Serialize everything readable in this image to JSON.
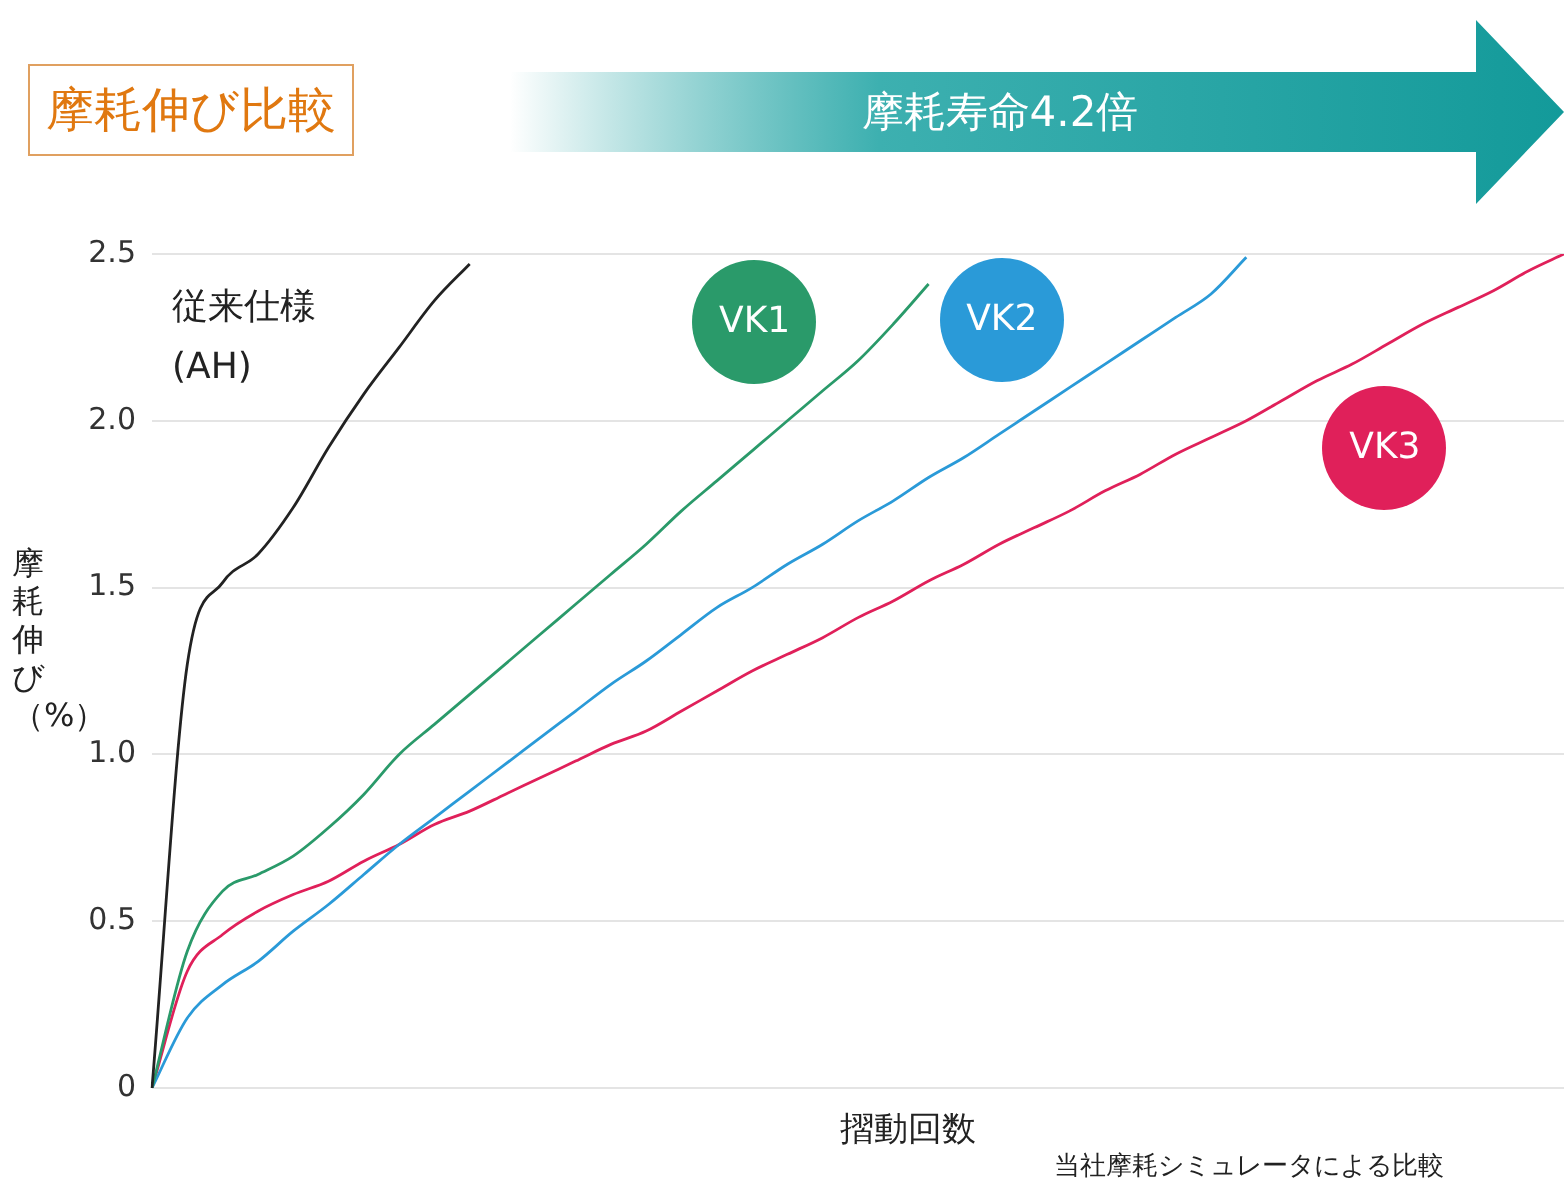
{
  "chart_data": {
    "type": "line",
    "title": "摩耗伸び比較",
    "subtitle": "摩耗寿命4.2倍",
    "xlabel": "摺動回数",
    "ylabel": "摩耗伸び（%）",
    "annotations": [
      "当社摩耗シミュレータによる比較"
    ],
    "categories": [
      null,
      null,
      null,
      null,
      null,
      null,
      null,
      null,
      null,
      null,
      null,
      null,
      null,
      null,
      null,
      null,
      null,
      null,
      null,
      null,
      null,
      null,
      null,
      null,
      null,
      null,
      null,
      null,
      null,
      null,
      null,
      null,
      null,
      null,
      null,
      null,
      null,
      null,
      null,
      null,
      null
    ],
    "ylim": [
      0,
      2.5
    ],
    "yticks": [
      {
        "value": 0,
        "label": "0"
      },
      0.5,
      {
        "value": 1,
        "label": "1.0"
      },
      1.5,
      {
        "value": 2,
        "label": "2.0"
      },
      2.5
    ],
    "tick_labels": "y",
    "grid": "y",
    "legend": false,
    "marker": "none",
    "line_style": "solid",
    "series": [
      {
        "name": "従来仕様 (AH)",
        "color": "#222222",
        "values": [
          0,
          1.27,
          1.515,
          1.6,
          1.74,
          1.92,
          2.08,
          2.22,
          2.36,
          2.47,
          null,
          null,
          null,
          null,
          null,
          null,
          null,
          null,
          null,
          null,
          null,
          null,
          null,
          null,
          null,
          null,
          null,
          null,
          null,
          null,
          null,
          null,
          null,
          null,
          null,
          null,
          null,
          null,
          null,
          null,
          null
        ]
      },
      {
        "name": "VK1",
        "color": "#2a9a6a",
        "values": [
          0,
          0.41,
          0.59,
          0.64,
          0.695,
          0.78,
          0.88,
          1.0,
          1.09,
          1.18,
          1.27,
          1.36,
          1.45,
          1.54,
          1.63,
          1.73,
          1.82,
          1.91,
          2.0,
          2.09,
          2.18,
          2.29,
          2.41,
          null,
          null,
          null,
          null,
          null,
          null,
          null,
          null,
          null,
          null,
          null,
          null,
          null,
          null,
          null,
          null,
          null,
          null
        ]
      },
      {
        "name": "VK2",
        "color": "#2a9ad8",
        "values": [
          0,
          0.21,
          0.31,
          0.379,
          0.47,
          0.55,
          0.64,
          0.73,
          0.81,
          0.89,
          0.97,
          1.05,
          1.13,
          1.21,
          1.28,
          1.36,
          1.44,
          1.5,
          1.57,
          1.63,
          1.7,
          1.76,
          1.83,
          1.89,
          1.96,
          2.03,
          2.1,
          2.17,
          2.24,
          2.31,
          2.38,
          2.49,
          null,
          null,
          null,
          null,
          null,
          null,
          null,
          null,
          null
        ]
      },
      {
        "name": "VK3",
        "color": "#e0205a",
        "values": [
          0,
          0.35,
          0.46,
          0.53,
          0.58,
          0.62,
          0.68,
          0.73,
          0.79,
          0.83,
          0.88,
          0.93,
          0.98,
          1.03,
          1.07,
          1.13,
          1.19,
          1.25,
          1.3,
          1.35,
          1.41,
          1.46,
          1.52,
          1.57,
          1.63,
          1.68,
          1.73,
          1.79,
          1.84,
          1.9,
          1.95,
          2.0,
          2.06,
          2.12,
          2.17,
          2.23,
          2.29,
          2.34,
          2.39,
          2.45,
          2.5
        ]
      }
    ]
  }
}
